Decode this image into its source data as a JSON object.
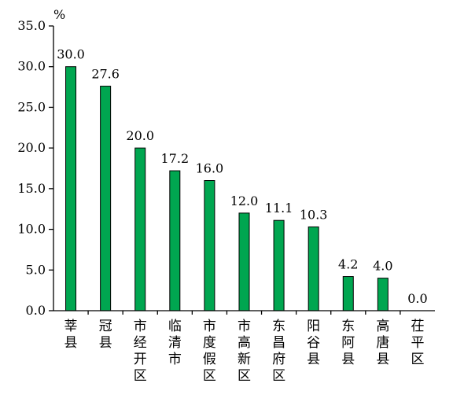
{
  "chart_data": {
    "type": "bar",
    "title": "",
    "xlabel": "",
    "ylabel": "%",
    "ylim": [
      0,
      35
    ],
    "yticks": [
      0,
      5,
      10,
      15,
      20,
      25,
      30,
      35
    ],
    "ytick_labels": [
      "0.0",
      "5.0",
      "10.0",
      "15.0",
      "20.0",
      "25.0",
      "30.0",
      "35.0"
    ],
    "categories": [
      "莘县",
      "冠县",
      "市经开区",
      "临清市",
      "市度假区",
      "市高新区",
      "东昌府区",
      "阳谷县",
      "东阿县",
      "高唐县",
      "茌平区"
    ],
    "values": [
      30.0,
      27.6,
      20.0,
      17.2,
      16.0,
      12.0,
      11.1,
      10.3,
      4.2,
      4.0,
      0.0
    ],
    "value_labels": [
      "30.0",
      "27.6",
      "20.0",
      "17.2",
      "16.0",
      "12.0",
      "11.1",
      "10.3",
      "4.2",
      "4.0",
      "0.0"
    ],
    "bar_color": "#00a650",
    "grid": false,
    "legend": "none"
  }
}
